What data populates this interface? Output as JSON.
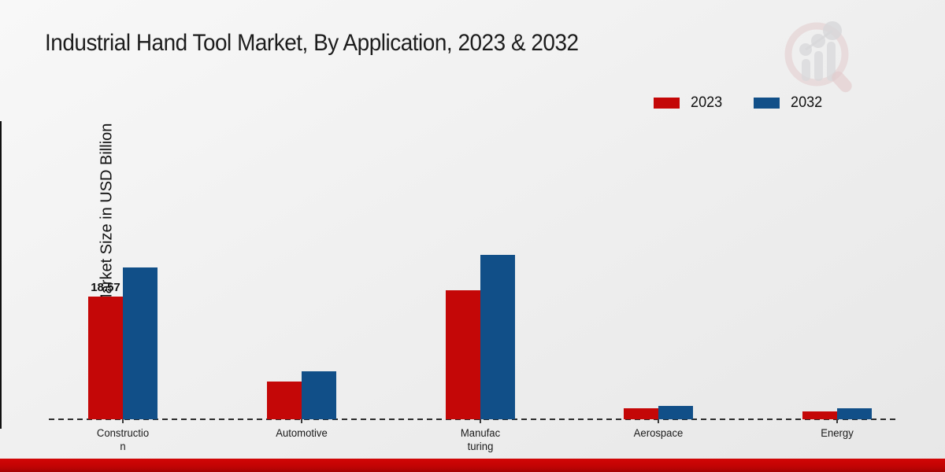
{
  "title": "Industrial Hand Tool Market, By Application, 2023 & 2032",
  "y_axis_label": "Market Size in USD Billion",
  "legend": {
    "items": [
      {
        "label": "2023",
        "color": "#c40707"
      },
      {
        "label": "2032",
        "color": "#114f88"
      }
    ]
  },
  "watermark_icon": "magnifier-bar-chart-logo",
  "footer_bar_color": "#c30505",
  "chart_data": {
    "type": "bar",
    "title": "Industrial Hand Tool Market, By Application, 2023 & 2032",
    "ylabel": "Market Size in USD Billion",
    "categories": [
      "Construction",
      "Automotive",
      "Manufacturing",
      "Aerospace",
      "Energy"
    ],
    "category_label_lines": [
      [
        "Constructio",
        "n"
      ],
      [
        "Automotive"
      ],
      [
        "Manufac",
        "turing"
      ],
      [
        "Aerospace"
      ],
      [
        "Energy"
      ]
    ],
    "series": [
      {
        "name": "2023",
        "color": "#c40707",
        "values": [
          18.57,
          5.7,
          19.5,
          1.7,
          1.2
        ]
      },
      {
        "name": "2032",
        "color": "#114f88",
        "values": [
          23.0,
          7.3,
          24.9,
          2.0,
          1.65
        ]
      }
    ],
    "data_labels": [
      {
        "series": "2023",
        "category": "Construction",
        "text": "18.57"
      }
    ],
    "ylim": [
      0,
      26
    ],
    "grid": false,
    "legend_position": "top-right",
    "baseline_style": "dashed"
  }
}
